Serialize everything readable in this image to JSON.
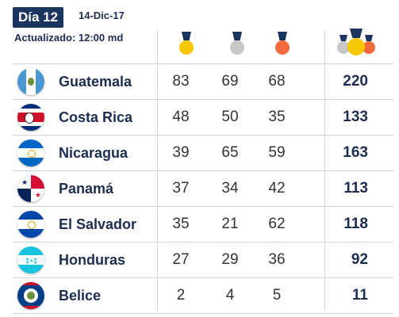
{
  "header": {
    "day_label": "Día 12",
    "date": "14-Dic-17",
    "updated": "Actualizado: 12:00 md"
  },
  "columns": {
    "icons": [
      "gold-medal-icon",
      "silver-medal-icon",
      "bronze-medal-icon",
      "total-medals-icon"
    ]
  },
  "colors": {
    "navy": "#1c355e",
    "gold": "#f5c800",
    "silver": "#c9c6c6",
    "bronze": "#f26a3c"
  },
  "rows": [
    {
      "country": "Guatemala",
      "flag": "guatemala-flag-icon",
      "gold": "83",
      "silver": "69",
      "bronze": "68",
      "total": "220"
    },
    {
      "country": "Costa Rica",
      "flag": "costa-rica-flag-icon",
      "gold": "48",
      "silver": "50",
      "bronze": "35",
      "total": "133"
    },
    {
      "country": "Nicaragua",
      "flag": "nicaragua-flag-icon",
      "gold": "39",
      "silver": "65",
      "bronze": "59",
      "total": "163"
    },
    {
      "country": "Panamá",
      "flag": "panama-flag-icon",
      "gold": "37",
      "silver": "34",
      "bronze": "42",
      "total": "113"
    },
    {
      "country": "El Salvador",
      "flag": "el-salvador-flag-icon",
      "gold": "35",
      "silver": "21",
      "bronze": "62",
      "total": "118"
    },
    {
      "country": "Honduras",
      "flag": "honduras-flag-icon",
      "gold": "27",
      "silver": "29",
      "bronze": "36",
      "total": "92"
    },
    {
      "country": "Belice",
      "flag": "belize-flag-icon",
      "gold": "2",
      "silver": "4",
      "bronze": "5",
      "total": "11"
    }
  ]
}
